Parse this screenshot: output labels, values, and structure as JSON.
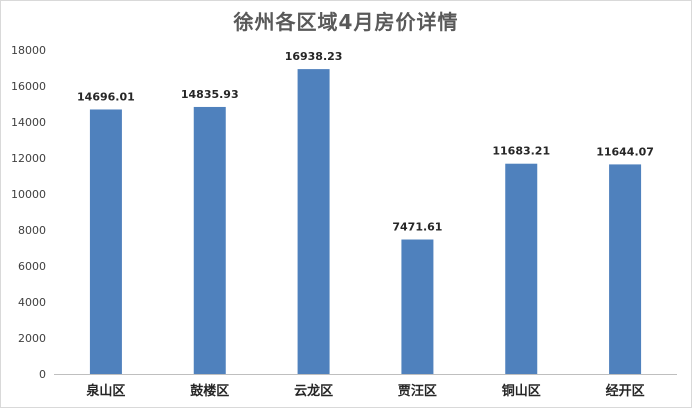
{
  "chart_data": {
    "type": "bar",
    "title": "徐州各区域4月房价详情",
    "xlabel": "",
    "ylabel": "",
    "ylim": [
      0,
      18000
    ],
    "yticks": [
      0,
      2000,
      4000,
      6000,
      8000,
      10000,
      12000,
      14000,
      16000,
      18000
    ],
    "grid": false,
    "legend": "none",
    "bar_color": "#4F81BD",
    "categories": [
      "泉山区",
      "鼓楼区",
      "云龙区",
      "贾汪区",
      "铜山区",
      "经开区"
    ],
    "values": [
      14696.01,
      14835.93,
      16938.23,
      7471.61,
      11683.21,
      11644.07
    ],
    "value_labels": [
      "14696.01",
      "14835.93",
      "16938.23",
      "7471.61",
      "11683.21",
      "11644.07"
    ]
  }
}
